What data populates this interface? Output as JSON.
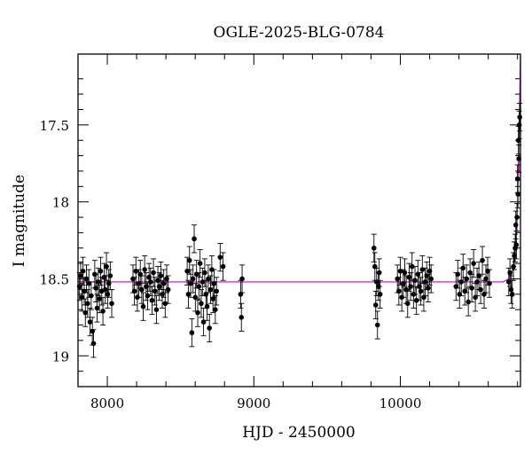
{
  "chart_data": {
    "type": "scatter",
    "title": "OGLE-2025-BLG-0784",
    "xlabel": "HJD - 2450000",
    "ylabel": "I magnitude",
    "xlim": [
      7800,
      10820
    ],
    "ylim": [
      19.2,
      17.04
    ],
    "y_inverted": true,
    "xticks": [
      8000,
      9000,
      10000
    ],
    "xtick_labels": [
      "8000",
      "9000",
      "10000"
    ],
    "yticks": [
      17.5,
      18,
      18.5,
      19
    ],
    "ytick_labels": [
      "17.5",
      "18",
      "18.5",
      "19"
    ],
    "grid": false,
    "legend": "none",
    "colors": {
      "points": "#000000",
      "model": "#cc00cc"
    },
    "series": [
      {
        "kind": "observations",
        "x": [
          7810,
          7818,
          7826,
          7834,
          7842,
          7850,
          7858,
          7866,
          7874,
          7882,
          7890,
          7898,
          7906,
          7914,
          7922,
          7930,
          7938,
          7946,
          7954,
          7962,
          7970,
          7978,
          7986,
          7994,
          8002,
          8010,
          8020,
          8030,
          8175,
          8185,
          8195,
          8205,
          8215,
          8225,
          8235,
          8245,
          8255,
          8265,
          8275,
          8285,
          8295,
          8305,
          8315,
          8325,
          8335,
          8345,
          8355,
          8365,
          8375,
          8385,
          8395,
          8405,
          8415,
          8545,
          8553,
          8561,
          8569,
          8577,
          8585,
          8593,
          8601,
          8609,
          8617,
          8625,
          8633,
          8641,
          8649,
          8657,
          8665,
          8673,
          8681,
          8689,
          8697,
          8705,
          8713,
          8721,
          8729,
          8737,
          8745,
          8770,
          8790,
          8910,
          8915,
          8920,
          9820,
          9826,
          9832,
          9838,
          9844,
          9850,
          9856,
          9862,
          9980,
          9990,
          10000,
          10010,
          10020,
          10030,
          10040,
          10050,
          10060,
          10070,
          10080,
          10090,
          10100,
          10110,
          10120,
          10130,
          10140,
          10150,
          10160,
          10170,
          10180,
          10190,
          10200,
          10210,
          10380,
          10392,
          10404,
          10416,
          10428,
          10440,
          10452,
          10464,
          10476,
          10488,
          10500,
          10512,
          10524,
          10536,
          10548,
          10560,
          10572,
          10584,
          10596,
          10608,
          10740,
          10748,
          10756,
          10764,
          10772,
          10778,
          10784,
          10788,
          10792,
          10796,
          10800,
          10803,
          10806,
          10809,
          10812,
          10815
        ],
        "y": [
          18.55,
          18.48,
          18.62,
          18.45,
          18.58,
          18.72,
          18.5,
          18.66,
          18.53,
          18.78,
          18.61,
          18.84,
          18.92,
          18.47,
          18.56,
          18.69,
          18.52,
          18.63,
          18.45,
          18.58,
          18.71,
          18.49,
          18.57,
          18.42,
          18.6,
          18.53,
          18.48,
          18.66,
          18.5,
          18.58,
          18.45,
          18.62,
          18.53,
          18.47,
          18.57,
          18.68,
          18.44,
          18.55,
          18.61,
          18.49,
          18.52,
          18.64,
          18.46,
          18.58,
          18.7,
          18.51,
          18.55,
          18.48,
          18.6,
          18.53,
          18.66,
          18.5,
          18.57,
          18.45,
          18.6,
          18.38,
          18.53,
          18.85,
          18.5,
          18.24,
          18.62,
          18.47,
          18.72,
          18.55,
          18.4,
          18.66,
          18.52,
          18.78,
          18.46,
          18.6,
          18.68,
          18.5,
          18.82,
          18.57,
          18.44,
          18.63,
          18.53,
          18.7,
          18.58,
          18.36,
          18.42,
          18.6,
          18.75,
          18.5,
          18.3,
          18.42,
          18.67,
          18.52,
          18.8,
          18.55,
          18.46,
          18.6,
          18.5,
          18.58,
          18.45,
          18.62,
          18.53,
          18.46,
          18.57,
          18.66,
          18.49,
          18.55,
          18.42,
          18.6,
          18.51,
          18.64,
          18.47,
          18.55,
          18.58,
          18.44,
          18.62,
          18.52,
          18.48,
          18.56,
          18.45,
          18.5,
          18.55,
          18.47,
          18.6,
          18.52,
          18.43,
          18.58,
          18.5,
          18.65,
          18.46,
          18.56,
          18.4,
          18.62,
          18.52,
          18.48,
          18.57,
          18.38,
          18.6,
          18.5,
          18.45,
          18.53,
          18.52,
          18.46,
          18.57,
          18.6,
          18.42,
          18.35,
          18.3,
          18.15,
          18.28,
          18.1,
          17.85,
          17.95,
          17.6,
          17.72,
          17.5,
          17.45
        ],
        "y_error": 0.09
      },
      {
        "kind": "model",
        "x": [
          7800,
          10700,
          10740,
          10760,
          10775,
          10785,
          10795,
          10800,
          10805,
          10810,
          10815,
          10820
        ],
        "y": [
          18.52,
          18.52,
          18.5,
          18.47,
          18.4,
          18.3,
          18.12,
          17.98,
          17.8,
          17.6,
          17.3,
          17.0
        ]
      }
    ]
  }
}
